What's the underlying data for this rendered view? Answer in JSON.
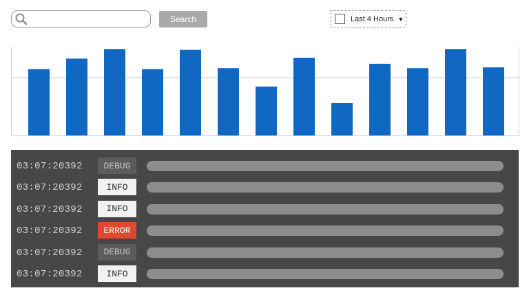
{
  "search": {
    "placeholder": "",
    "value": "",
    "button_label": "Search"
  },
  "time_range": {
    "selected": "Last 4 Hours",
    "checked": false
  },
  "chart_data": {
    "type": "bar",
    "color": "#1068c2",
    "grid": true,
    "ylim": [
      0,
      100
    ],
    "values": [
      76,
      88,
      99,
      76,
      98,
      77,
      56,
      89,
      37,
      82,
      77,
      99,
      78
    ]
  },
  "logs": [
    {
      "time": "03:07:20392",
      "level": "DEBUG"
    },
    {
      "time": "03:07:20392",
      "level": "INFO"
    },
    {
      "time": "03:07:20392",
      "level": "INFO"
    },
    {
      "time": "03:07:20392",
      "level": "ERROR"
    },
    {
      "time": "03:07:20392",
      "level": "DEBUG"
    },
    {
      "time": "03:07:20392",
      "level": "INFO"
    }
  ],
  "colors": {
    "bar": "#1068c2",
    "panel": "#474747",
    "error": "#e0492f",
    "button": "#a9a9a9"
  }
}
